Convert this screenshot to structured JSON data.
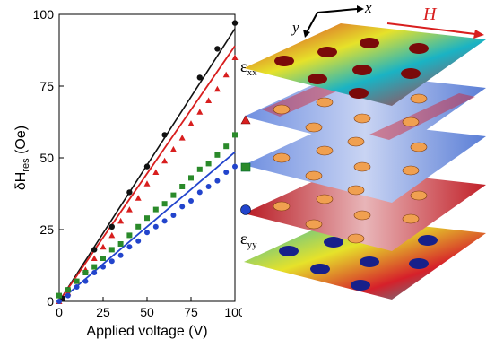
{
  "chart_data": {
    "type": "scatter",
    "xlabel": "Applied voltage (V)",
    "ylabel_main": "δH",
    "ylabel_sub": "res",
    "ylabel_unit": " (Oe)",
    "xlim": [
      0,
      100
    ],
    "ylim": [
      0,
      100
    ],
    "xticks": [
      0,
      25,
      50,
      75,
      100
    ],
    "yticks": [
      0,
      25,
      50,
      75,
      100
    ],
    "grid": false,
    "series": [
      {
        "marker": "circle",
        "color": "#111111",
        "x": [
          2,
          5,
          20,
          30,
          40,
          50,
          60,
          80,
          90,
          100
        ],
        "y": [
          1,
          4,
          18,
          26,
          38,
          47,
          58,
          78,
          88,
          97
        ],
        "fit": [
          [
            0,
            0
          ],
          [
            100,
            95
          ]
        ]
      },
      {
        "marker": "triangle",
        "color": "#d81e1e",
        "x": [
          0,
          5,
          10,
          15,
          20,
          25,
          30,
          35,
          40,
          45,
          50,
          55,
          60,
          65,
          70,
          75,
          80,
          85,
          90,
          95,
          100
        ],
        "y": [
          0,
          3,
          7,
          11,
          15,
          19,
          23,
          28,
          32,
          36,
          41,
          45,
          49,
          53,
          57,
          62,
          66,
          70,
          74,
          79,
          85
        ],
        "fit": [
          [
            0,
            0
          ],
          [
            100,
            89
          ]
        ]
      },
      {
        "marker": "square",
        "color": "#2a8a2a",
        "x": [
          0,
          5,
          10,
          15,
          20,
          25,
          30,
          35,
          40,
          45,
          50,
          55,
          60,
          65,
          70,
          75,
          80,
          85,
          90,
          95,
          100
        ],
        "y": [
          2,
          4,
          7,
          10,
          12,
          15,
          18,
          20,
          23,
          26,
          29,
          32,
          34,
          37,
          40,
          43,
          46,
          48,
          51,
          54,
          58
        ],
        "fit": null
      },
      {
        "marker": "circle",
        "color": "#2244cc",
        "x": [
          0,
          5,
          10,
          15,
          20,
          25,
          30,
          35,
          40,
          45,
          50,
          55,
          60,
          65,
          70,
          75,
          80,
          85,
          90,
          95,
          100
        ],
        "y": [
          0,
          2,
          5,
          7,
          10,
          12,
          14,
          16,
          19,
          21,
          24,
          26,
          28,
          30,
          33,
          35,
          38,
          40,
          42,
          45,
          47
        ],
        "fit": [
          [
            0,
            0
          ],
          [
            100,
            52
          ]
        ]
      }
    ]
  },
  "maps": {
    "y_axis_label": "y",
    "x_axis_label": "x",
    "field_label": "H",
    "label_top_main": "ε",
    "label_top_sub": "xx",
    "label_bottom_main": "ε",
    "label_bottom_sub": "yy",
    "colors": {
      "red": "#d6202a",
      "blue": "#2a5fd6",
      "teal": "#1ab3c4",
      "yellow": "#e6e22a",
      "orange": "#f0a050",
      "navy": "#17208a",
      "darkred": "#7a0a0a",
      "arrow": "#d81e1e"
    }
  }
}
